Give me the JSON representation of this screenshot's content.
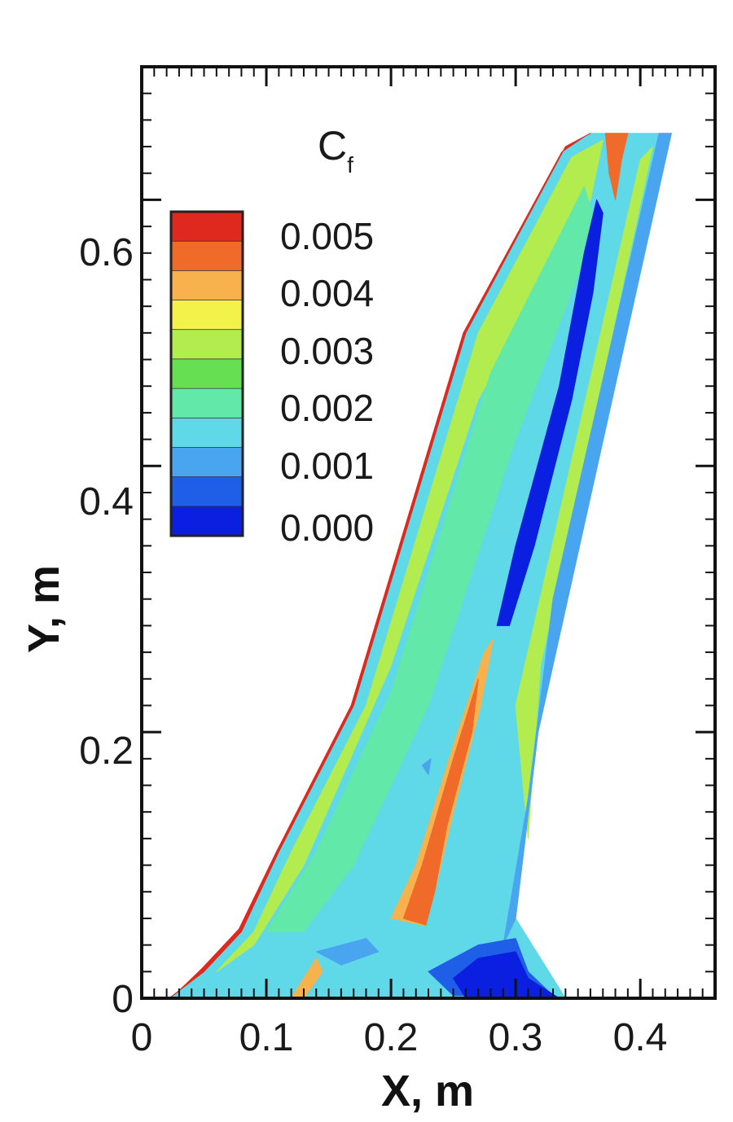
{
  "chart_data": {
    "type": "heatmap",
    "subtype": "filled-contour",
    "title": "",
    "xlabel": "X, m",
    "ylabel": "Y, m",
    "xlim": [
      0,
      0.46
    ],
    "ylim": [
      0,
      0.7
    ],
    "x_ticks": [
      "0",
      "0.1",
      "0.2",
      "0.3",
      "0.4"
    ],
    "y_ticks": [
      "0",
      "0.2",
      "0.4",
      "0.6"
    ],
    "colorbar": {
      "title_main": "C",
      "title_sub": "f",
      "position": "top-left",
      "tick_labels": [
        "0.005",
        "0.004",
        "0.003",
        "0.002",
        "0.001",
        "0.000"
      ],
      "range": [
        0,
        0.0055
      ],
      "levels": [
        {
          "color": "#0a1fe0"
        },
        {
          "color": "#1f5fe8"
        },
        {
          "color": "#4aa5f0"
        },
        {
          "color": "#5fd8e8"
        },
        {
          "color": "#62e8a8"
        },
        {
          "color": "#66e052"
        },
        {
          "color": "#b3ec4f"
        },
        {
          "color": "#f2f24a"
        },
        {
          "color": "#f7b24e"
        },
        {
          "color": "#f06a2a"
        },
        {
          "color": "#e0291e"
        }
      ]
    },
    "grid": false,
    "regions": [
      {
        "level": 3,
        "desc": "wing planform base field",
        "pts": [
          [
            0.022,
            0
          ],
          [
            0.34,
            0
          ],
          [
            0.3,
            0.06
          ],
          [
            0.318,
            0.2
          ],
          [
            0.425,
            0.65
          ],
          [
            0.36,
            0.65
          ],
          [
            0.34,
            0.64
          ],
          [
            0.26,
            0.5
          ],
          [
            0.17,
            0.22
          ],
          [
            0.11,
            0.11
          ],
          [
            0.08,
            0.05
          ],
          [
            0.05,
            0.02
          ]
        ]
      },
      {
        "level": 10,
        "desc": "leading-edge red band",
        "pts": [
          [
            0.022,
            0
          ],
          [
            0.05,
            0.02
          ],
          [
            0.08,
            0.05
          ],
          [
            0.11,
            0.11
          ],
          [
            0.17,
            0.22
          ],
          [
            0.26,
            0.5
          ],
          [
            0.34,
            0.64
          ],
          [
            0.36,
            0.65
          ],
          [
            0.356,
            0.648
          ],
          [
            0.337,
            0.636
          ],
          [
            0.258,
            0.5
          ],
          [
            0.168,
            0.22
          ],
          [
            0.108,
            0.11
          ],
          [
            0.078,
            0.052
          ],
          [
            0.048,
            0.022
          ],
          [
            0.028,
            0.004
          ]
        ]
      },
      {
        "level": 6,
        "desc": "leading-edge green band",
        "pts": [
          [
            0.06,
            0.02
          ],
          [
            0.09,
            0.05
          ],
          [
            0.12,
            0.11
          ],
          [
            0.18,
            0.22
          ],
          [
            0.27,
            0.5
          ],
          [
            0.345,
            0.632
          ],
          [
            0.37,
            0.645
          ],
          [
            0.36,
            0.6
          ],
          [
            0.27,
            0.45
          ],
          [
            0.2,
            0.25
          ],
          [
            0.13,
            0.1
          ],
          [
            0.09,
            0.04
          ]
        ]
      },
      {
        "level": 4,
        "desc": "inner green band",
        "pts": [
          [
            0.1,
            0.05
          ],
          [
            0.14,
            0.11
          ],
          [
            0.2,
            0.23
          ],
          [
            0.28,
            0.47
          ],
          [
            0.355,
            0.61
          ],
          [
            0.365,
            0.58
          ],
          [
            0.3,
            0.42
          ],
          [
            0.23,
            0.22
          ],
          [
            0.17,
            0.1
          ],
          [
            0.13,
            0.05
          ]
        ]
      },
      {
        "level": 6,
        "desc": "trailing-edge green band",
        "pts": [
          [
            0.3,
            0.22
          ],
          [
            0.4,
            0.63
          ],
          [
            0.41,
            0.64
          ],
          [
            0.32,
            0.25
          ],
          [
            0.31,
            0.12
          ]
        ]
      },
      {
        "level": 2,
        "desc": "trailing-edge blue band",
        "pts": [
          [
            0.3,
            0.06
          ],
          [
            0.318,
            0.2
          ],
          [
            0.425,
            0.65
          ],
          [
            0.415,
            0.65
          ],
          [
            0.33,
            0.3
          ],
          [
            0.31,
            0.15
          ],
          [
            0.29,
            0.04
          ]
        ]
      },
      {
        "level": 1,
        "desc": "blue root region",
        "pts": [
          [
            0.23,
            0.02
          ],
          [
            0.27,
            0.04
          ],
          [
            0.3,
            0.045
          ],
          [
            0.31,
            0.02
          ],
          [
            0.33,
            0.002
          ],
          [
            0.25,
            0.002
          ]
        ]
      },
      {
        "level": 0,
        "desc": "dark blue root core",
        "pts": [
          [
            0.27,
            0.03
          ],
          [
            0.3,
            0.035
          ],
          [
            0.31,
            0.015
          ],
          [
            0.335,
            0.0
          ],
          [
            0.26,
            0.0
          ],
          [
            0.25,
            0.015
          ]
        ]
      },
      {
        "level": 0,
        "desc": "shock-induced separation streak",
        "pts": [
          [
            0.285,
            0.28
          ],
          [
            0.3,
            0.34
          ],
          [
            0.335,
            0.46
          ],
          [
            0.355,
            0.56
          ],
          [
            0.365,
            0.6
          ],
          [
            0.37,
            0.59
          ],
          [
            0.362,
            0.53
          ],
          [
            0.345,
            0.45
          ],
          [
            0.315,
            0.34
          ],
          [
            0.295,
            0.28
          ]
        ]
      },
      {
        "level": 8,
        "desc": "inboard high-friction spike (outer)",
        "pts": [
          [
            0.2,
            0.06
          ],
          [
            0.22,
            0.1
          ],
          [
            0.25,
            0.19
          ],
          [
            0.275,
            0.26
          ],
          [
            0.282,
            0.27
          ],
          [
            0.272,
            0.22
          ],
          [
            0.25,
            0.14
          ],
          [
            0.235,
            0.08
          ],
          [
            0.225,
            0.055
          ]
        ]
      },
      {
        "level": 9,
        "desc": "inboard high-friction spike (core)",
        "pts": [
          [
            0.21,
            0.06
          ],
          [
            0.225,
            0.1
          ],
          [
            0.25,
            0.18
          ],
          [
            0.27,
            0.24
          ],
          [
            0.265,
            0.2
          ],
          [
            0.245,
            0.13
          ],
          [
            0.235,
            0.08
          ],
          [
            0.228,
            0.055
          ]
        ]
      },
      {
        "level": 9,
        "desc": "wing-tip orange patch",
        "pts": [
          [
            0.372,
            0.65
          ],
          [
            0.39,
            0.65
          ],
          [
            0.385,
            0.63
          ],
          [
            0.38,
            0.6
          ],
          [
            0.375,
            0.62
          ]
        ]
      },
      {
        "level": 2,
        "desc": "root blue patch left",
        "pts": [
          [
            0.14,
            0.035
          ],
          [
            0.18,
            0.045
          ],
          [
            0.19,
            0.035
          ],
          [
            0.16,
            0.025
          ]
        ]
      },
      {
        "level": 8,
        "desc": "root orange patch",
        "pts": [
          [
            0.12,
            0.0
          ],
          [
            0.14,
            0.03
          ],
          [
            0.145,
            0.02
          ],
          [
            0.13,
            0.0
          ]
        ]
      },
      {
        "level": 2,
        "desc": "small blue speck",
        "pts": [
          [
            0.225,
            0.175
          ],
          [
            0.232,
            0.18
          ],
          [
            0.23,
            0.168
          ]
        ]
      }
    ]
  }
}
